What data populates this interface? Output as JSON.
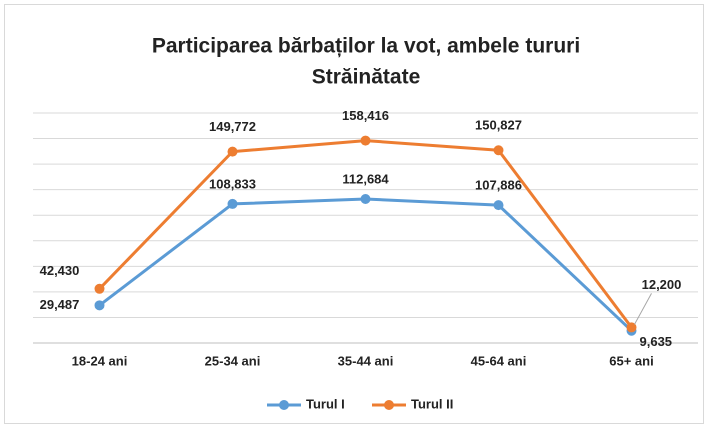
{
  "chart_data": {
    "type": "line",
    "title": [
      "Participarea bărbaților la vot, ambele tururi",
      "Străinătate"
    ],
    "categories": [
      "18-24 ani",
      "25-34 ani",
      "35-44 ani",
      "45-64 ani",
      "65+ ani"
    ],
    "series": [
      {
        "name": "Turul I",
        "color": "#5b9bd5",
        "values": [
          29487,
          108833,
          112684,
          107886,
          9635
        ],
        "value_labels": [
          "29,487",
          "108,833",
          "112,684",
          "107,886",
          "9,635"
        ]
      },
      {
        "name": "Turul II",
        "color": "#ed7d31",
        "values": [
          42430,
          149772,
          158416,
          150827,
          12200
        ],
        "value_labels": [
          "42,430",
          "149,772",
          "158,416",
          "150,827",
          "12,200"
        ]
      }
    ],
    "ylim": [
      0,
      180000
    ],
    "yticks": [
      0,
      20000,
      40000,
      60000,
      80000,
      100000,
      120000,
      140000,
      160000,
      180000
    ],
    "grid": true,
    "legend": "bottom"
  }
}
